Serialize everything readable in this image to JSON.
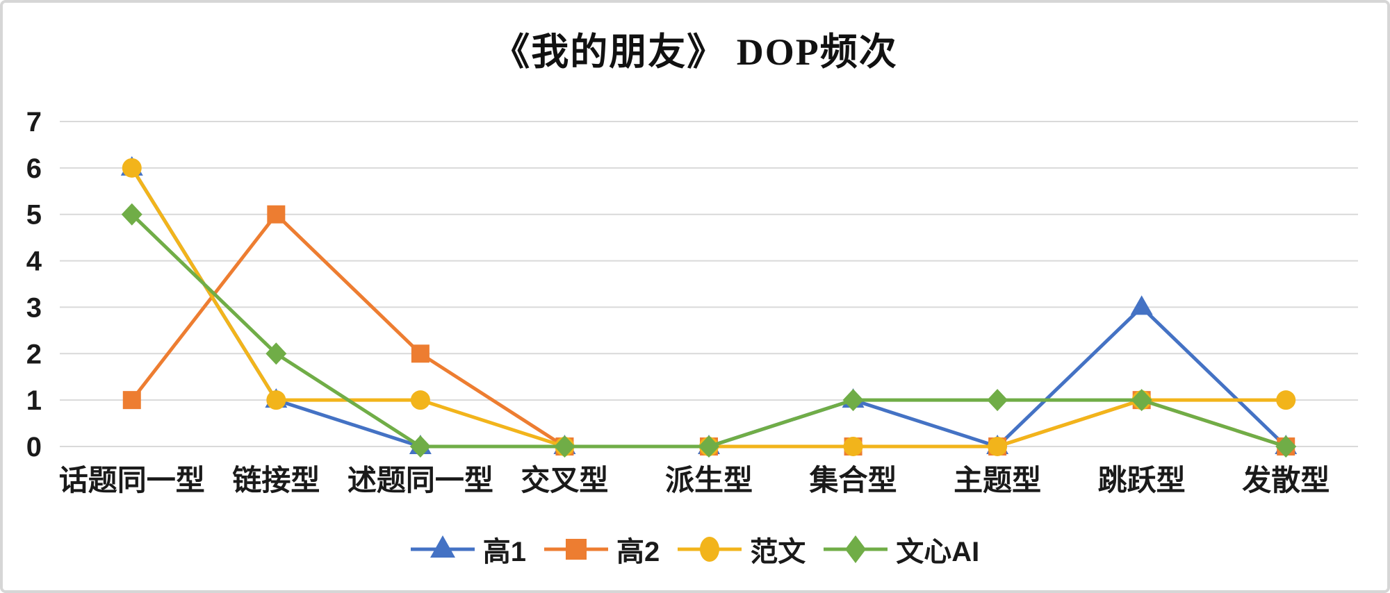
{
  "chart_data": {
    "type": "line",
    "title": "《我的朋友》 DOP频次",
    "categories": [
      "话题同一型",
      "链接型",
      "述题同一型",
      "交叉型",
      "派生型",
      "集合型",
      "主题型",
      "跳跃型",
      "发散型"
    ],
    "series": [
      {
        "name": "高1",
        "color": "#4472C4",
        "marker": "triangle",
        "values": [
          6,
          1,
          0,
          0,
          0,
          1,
          0,
          3,
          0
        ]
      },
      {
        "name": "高2",
        "color": "#ED7D31",
        "marker": "square",
        "values": [
          1,
          5,
          2,
          0,
          0,
          0,
          0,
          1,
          0
        ]
      },
      {
        "name": "范文",
        "color": "#F2B41B",
        "marker": "circle",
        "values": [
          6,
          1,
          1,
          0,
          0,
          0,
          0,
          1,
          1
        ]
      },
      {
        "name": "文心AI",
        "color": "#70AD47",
        "marker": "diamond",
        "values": [
          5,
          2,
          0,
          0,
          0,
          1,
          1,
          1,
          0
        ]
      }
    ],
    "y_axis": {
      "min": 0,
      "max": 7,
      "ticks": [
        0,
        1,
        2,
        3,
        4,
        5,
        6,
        7
      ]
    },
    "xlabel": "",
    "ylabel": "",
    "gridlines": true,
    "gridline_color": "#D9D9D9",
    "axis_text_color": "#1a1a1a",
    "legend_position": "bottom"
  }
}
